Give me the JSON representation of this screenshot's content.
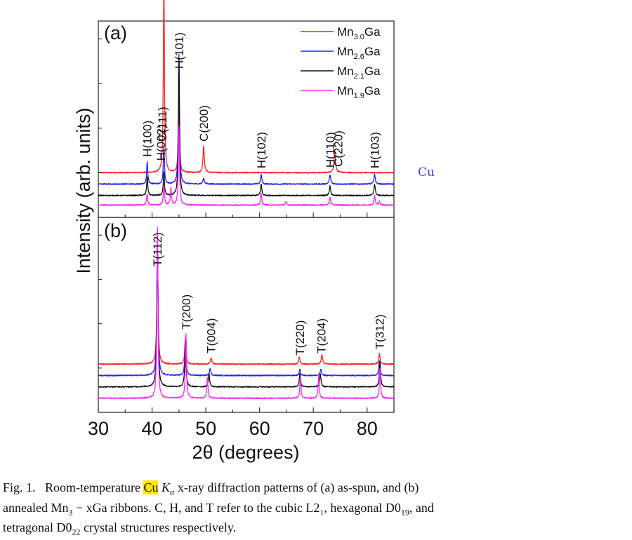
{
  "side_note": "Cu",
  "caption": {
    "prefix": "Fig. 1.",
    "before_highlight": "Room-temperature",
    "highlight": "Cu",
    "k_symbol": "K",
    "k_sub": "α",
    "line1_rest": "x-ray diffraction patterns of (a) as-spun, and",
    "line2_start": "(b) annealed",
    "mn": "Mn",
    "mn_sub": "3",
    "line2_mid": "− xGa ribbons. C, H, and T refer to the cubic",
    "l21": "L2",
    "l21_sub": "1",
    "line2_end": ", hexagonal",
    "d019": "D0",
    "d019_sub": "19",
    "line3_mid": ", and tetragonal",
    "d022": "D0",
    "d022_sub": "22",
    "line3_end": "crystal structures respectively."
  },
  "chart_data": [
    {
      "type": "line",
      "panel_label": "(a)",
      "title": "",
      "xlabel": "2θ (degrees)",
      "ylabel": "Intensity (arb. units)",
      "xlim": [
        30,
        85
      ],
      "xticks": [
        30,
        40,
        50,
        60,
        70,
        80
      ],
      "ylim": [
        0,
        1
      ],
      "grid": false,
      "legend": {
        "placement": "top-right",
        "entries": [
          {
            "base": "Mn",
            "sub": "3.0",
            "suffix": "Ga",
            "color": "#ff2020"
          },
          {
            "base": "Mn",
            "sub": "2.6",
            "suffix": "Ga",
            "color": "#2020ff"
          },
          {
            "base": "Mn",
            "sub": "2.1",
            "suffix": "Ga",
            "color": "#111111"
          },
          {
            "base": "Mn",
            "sub": "1.9",
            "suffix": "Ga",
            "color": "#ff20ff"
          }
        ]
      },
      "annotations": [
        {
          "text": "H(100)",
          "x": 39.1
        },
        {
          "text": "H(002)",
          "x": 41.6
        },
        {
          "text": "C(111)",
          "x": 41.9
        },
        {
          "text": "H(101)",
          "x": 45.0
        },
        {
          "text": "C(200)",
          "x": 49.6
        },
        {
          "text": "H(102)",
          "x": 60.3
        },
        {
          "text": "H(110)",
          "x": 73.1
        },
        {
          "text": "C(220)",
          "x": 74.6
        },
        {
          "text": "H(103)",
          "x": 81.4
        }
      ],
      "series": [
        {
          "name": "Mn3.0Ga",
          "color": "#ff2020",
          "baseline": 0.22,
          "peaks": [
            [
              42.2,
              1.0,
              0.18
            ],
            [
              45.0,
              0.4,
              0.18
            ],
            [
              49.6,
              0.14,
              0.22
            ],
            [
              74.0,
              0.11,
              0.25
            ]
          ]
        },
        {
          "name": "Mn2.6Ga",
          "color": "#2020ff",
          "baseline": 0.16,
          "peaks": [
            [
              39.1,
              0.12,
              0.18
            ],
            [
              42.2,
              0.2,
              0.18
            ],
            [
              45.0,
              0.68,
              0.18
            ],
            [
              49.6,
              0.03,
              0.25
            ],
            [
              60.3,
              0.05,
              0.2
            ],
            [
              73.1,
              0.05,
              0.22
            ],
            [
              81.4,
              0.05,
              0.22
            ]
          ]
        },
        {
          "name": "Mn2.1Ga",
          "color": "#111111",
          "baseline": 0.1,
          "peaks": [
            [
              39.1,
              0.1,
              0.18
            ],
            [
              42.2,
              0.12,
              0.18
            ],
            [
              45.0,
              0.72,
              0.18
            ],
            [
              60.3,
              0.06,
              0.2
            ],
            [
              73.1,
              0.05,
              0.22
            ],
            [
              81.4,
              0.06,
              0.22
            ]
          ]
        },
        {
          "name": "Mn1.9Ga",
          "color": "#ff20ff",
          "baseline": 0.05,
          "peaks": [
            [
              39.1,
              0.06,
              0.18
            ],
            [
              42.2,
              0.11,
              0.18
            ],
            [
              43.5,
              0.09,
              0.18
            ],
            [
              45.0,
              0.42,
              0.18
            ],
            [
              60.3,
              0.06,
              0.2
            ],
            [
              64.9,
              0.015,
              0.25
            ],
            [
              73.1,
              0.04,
              0.22
            ],
            [
              81.4,
              0.05,
              0.2
            ],
            [
              82.3,
              0.02,
              0.2
            ]
          ]
        }
      ]
    },
    {
      "type": "line",
      "panel_label": "(b)",
      "title": "",
      "xlabel": "2θ (degrees)",
      "ylabel": "Intensity (arb. units)",
      "xlim": [
        30,
        85
      ],
      "xticks": [
        30,
        40,
        50,
        60,
        70,
        80
      ],
      "ylim": [
        0,
        1
      ],
      "grid": false,
      "annotations": [
        {
          "text": "T(112)",
          "x": 41.0
        },
        {
          "text": "T(200)",
          "x": 46.3
        },
        {
          "text": "T(004)",
          "x": 51.0
        },
        {
          "text": "T(220)",
          "x": 67.5
        },
        {
          "text": "T(204)",
          "x": 71.5
        },
        {
          "text": "T(312)",
          "x": 82.3
        }
      ],
      "series": [
        {
          "name": "Mn3.0Ga",
          "color": "#ff2020",
          "baseline": 0.24,
          "peaks": [
            [
              41.0,
              0.62,
              0.2
            ],
            [
              46.2,
              0.14,
              0.2
            ],
            [
              51.0,
              0.035,
              0.22
            ],
            [
              67.4,
              0.035,
              0.22
            ],
            [
              71.6,
              0.05,
              0.22
            ],
            [
              82.3,
              0.055,
              0.22
            ]
          ]
        },
        {
          "name": "Mn2.6Ga",
          "color": "#2020ff",
          "baseline": 0.18,
          "peaks": [
            [
              41.0,
              0.7,
              0.2
            ],
            [
              46.2,
              0.18,
              0.2
            ],
            [
              50.8,
              0.04,
              0.2
            ],
            [
              67.5,
              0.035,
              0.2
            ],
            [
              71.4,
              0.035,
              0.2
            ],
            [
              82.3,
              0.08,
              0.2
            ]
          ]
        },
        {
          "name": "Mn2.1Ga",
          "color": "#111111",
          "baseline": 0.12,
          "peaks": [
            [
              41.0,
              0.78,
              0.2
            ],
            [
              46.2,
              0.24,
              0.2
            ],
            [
              50.6,
              0.07,
              0.2
            ],
            [
              67.5,
              0.07,
              0.2
            ],
            [
              71.3,
              0.07,
              0.2
            ],
            [
              82.4,
              0.13,
              0.2
            ]
          ]
        },
        {
          "name": "Mn1.9Ga",
          "color": "#ff20ff",
          "baseline": 0.06,
          "peaks": [
            [
              41.0,
              0.9,
              0.18
            ],
            [
              46.3,
              0.34,
              0.18
            ],
            [
              50.3,
              0.11,
              0.18
            ],
            [
              67.6,
              0.11,
              0.18
            ],
            [
              71.0,
              0.12,
              0.18
            ],
            [
              82.4,
              0.16,
              0.18
            ]
          ]
        }
      ]
    }
  ]
}
